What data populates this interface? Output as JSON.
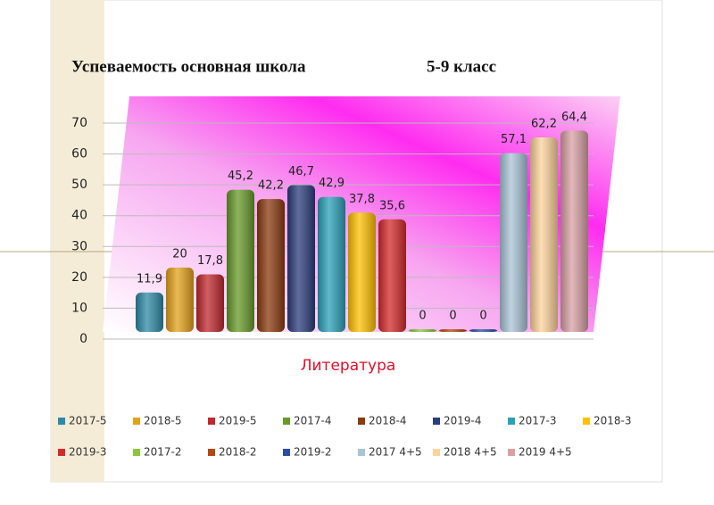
{
  "chart_data": {
    "type": "bar",
    "title": "Успеваемость основная школа",
    "subtitle": "5-9 класс",
    "categories": [
      "Литература"
    ],
    "ylim": [
      0,
      70
    ],
    "yticks": [
      0,
      10,
      20,
      30,
      40,
      50,
      60,
      70
    ],
    "grid": true,
    "series": [
      {
        "name": "2017-5",
        "color": "#2e8aa6",
        "values": [
          11.9
        ],
        "value_labels": [
          "11,9"
        ]
      },
      {
        "name": "2018-5",
        "color": "#e3a21a",
        "values": [
          20
        ]
      },
      {
        "name": "2019-5",
        "color": "#c0282d",
        "values": [
          17.8
        ],
        "value_labels": [
          "17,8"
        ]
      },
      {
        "name": "2017-4",
        "color": "#679a2a",
        "values": [
          45.2
        ],
        "value_labels": [
          "45,2"
        ]
      },
      {
        "name": "2018-4",
        "color": "#8a3a0f",
        "values": [
          42.2
        ],
        "value_labels": [
          "42,2"
        ]
      },
      {
        "name": "2019-4",
        "color": "#2b3d7c",
        "values": [
          46.7
        ],
        "value_labels": [
          "46,7"
        ]
      },
      {
        "name": "2017-3",
        "color": "#2aa0b9",
        "values": [
          42.9
        ],
        "value_labels": [
          "42,9"
        ]
      },
      {
        "name": "2018-3",
        "color": "#ffc000",
        "values": [
          37.8
        ],
        "value_labels": [
          "37,8"
        ]
      },
      {
        "name": "2019-3",
        "color": "#d42a2a",
        "values": [
          35.6
        ],
        "value_labels": [
          "35,6"
        ]
      },
      {
        "name": "2017-2",
        "color": "#8cc63e",
        "values": [
          0
        ]
      },
      {
        "name": "2018-2",
        "color": "#b5470b",
        "values": [
          0
        ]
      },
      {
        "name": "2019-2",
        "color": "#2f4da0",
        "values": [
          0
        ]
      },
      {
        "name": "2017 4+5",
        "color": "#a9c4d6",
        "values": [
          57.1
        ],
        "value_labels": [
          "57,1"
        ]
      },
      {
        "name": "2018 4+5",
        "color": "#fdd39c",
        "values": [
          62.2
        ],
        "value_labels": [
          "62,2"
        ]
      },
      {
        "name": "2019 4+5",
        "color": "#d9a0a4",
        "values": [
          64.4
        ],
        "value_labels": [
          "64,4"
        ]
      }
    ]
  }
}
